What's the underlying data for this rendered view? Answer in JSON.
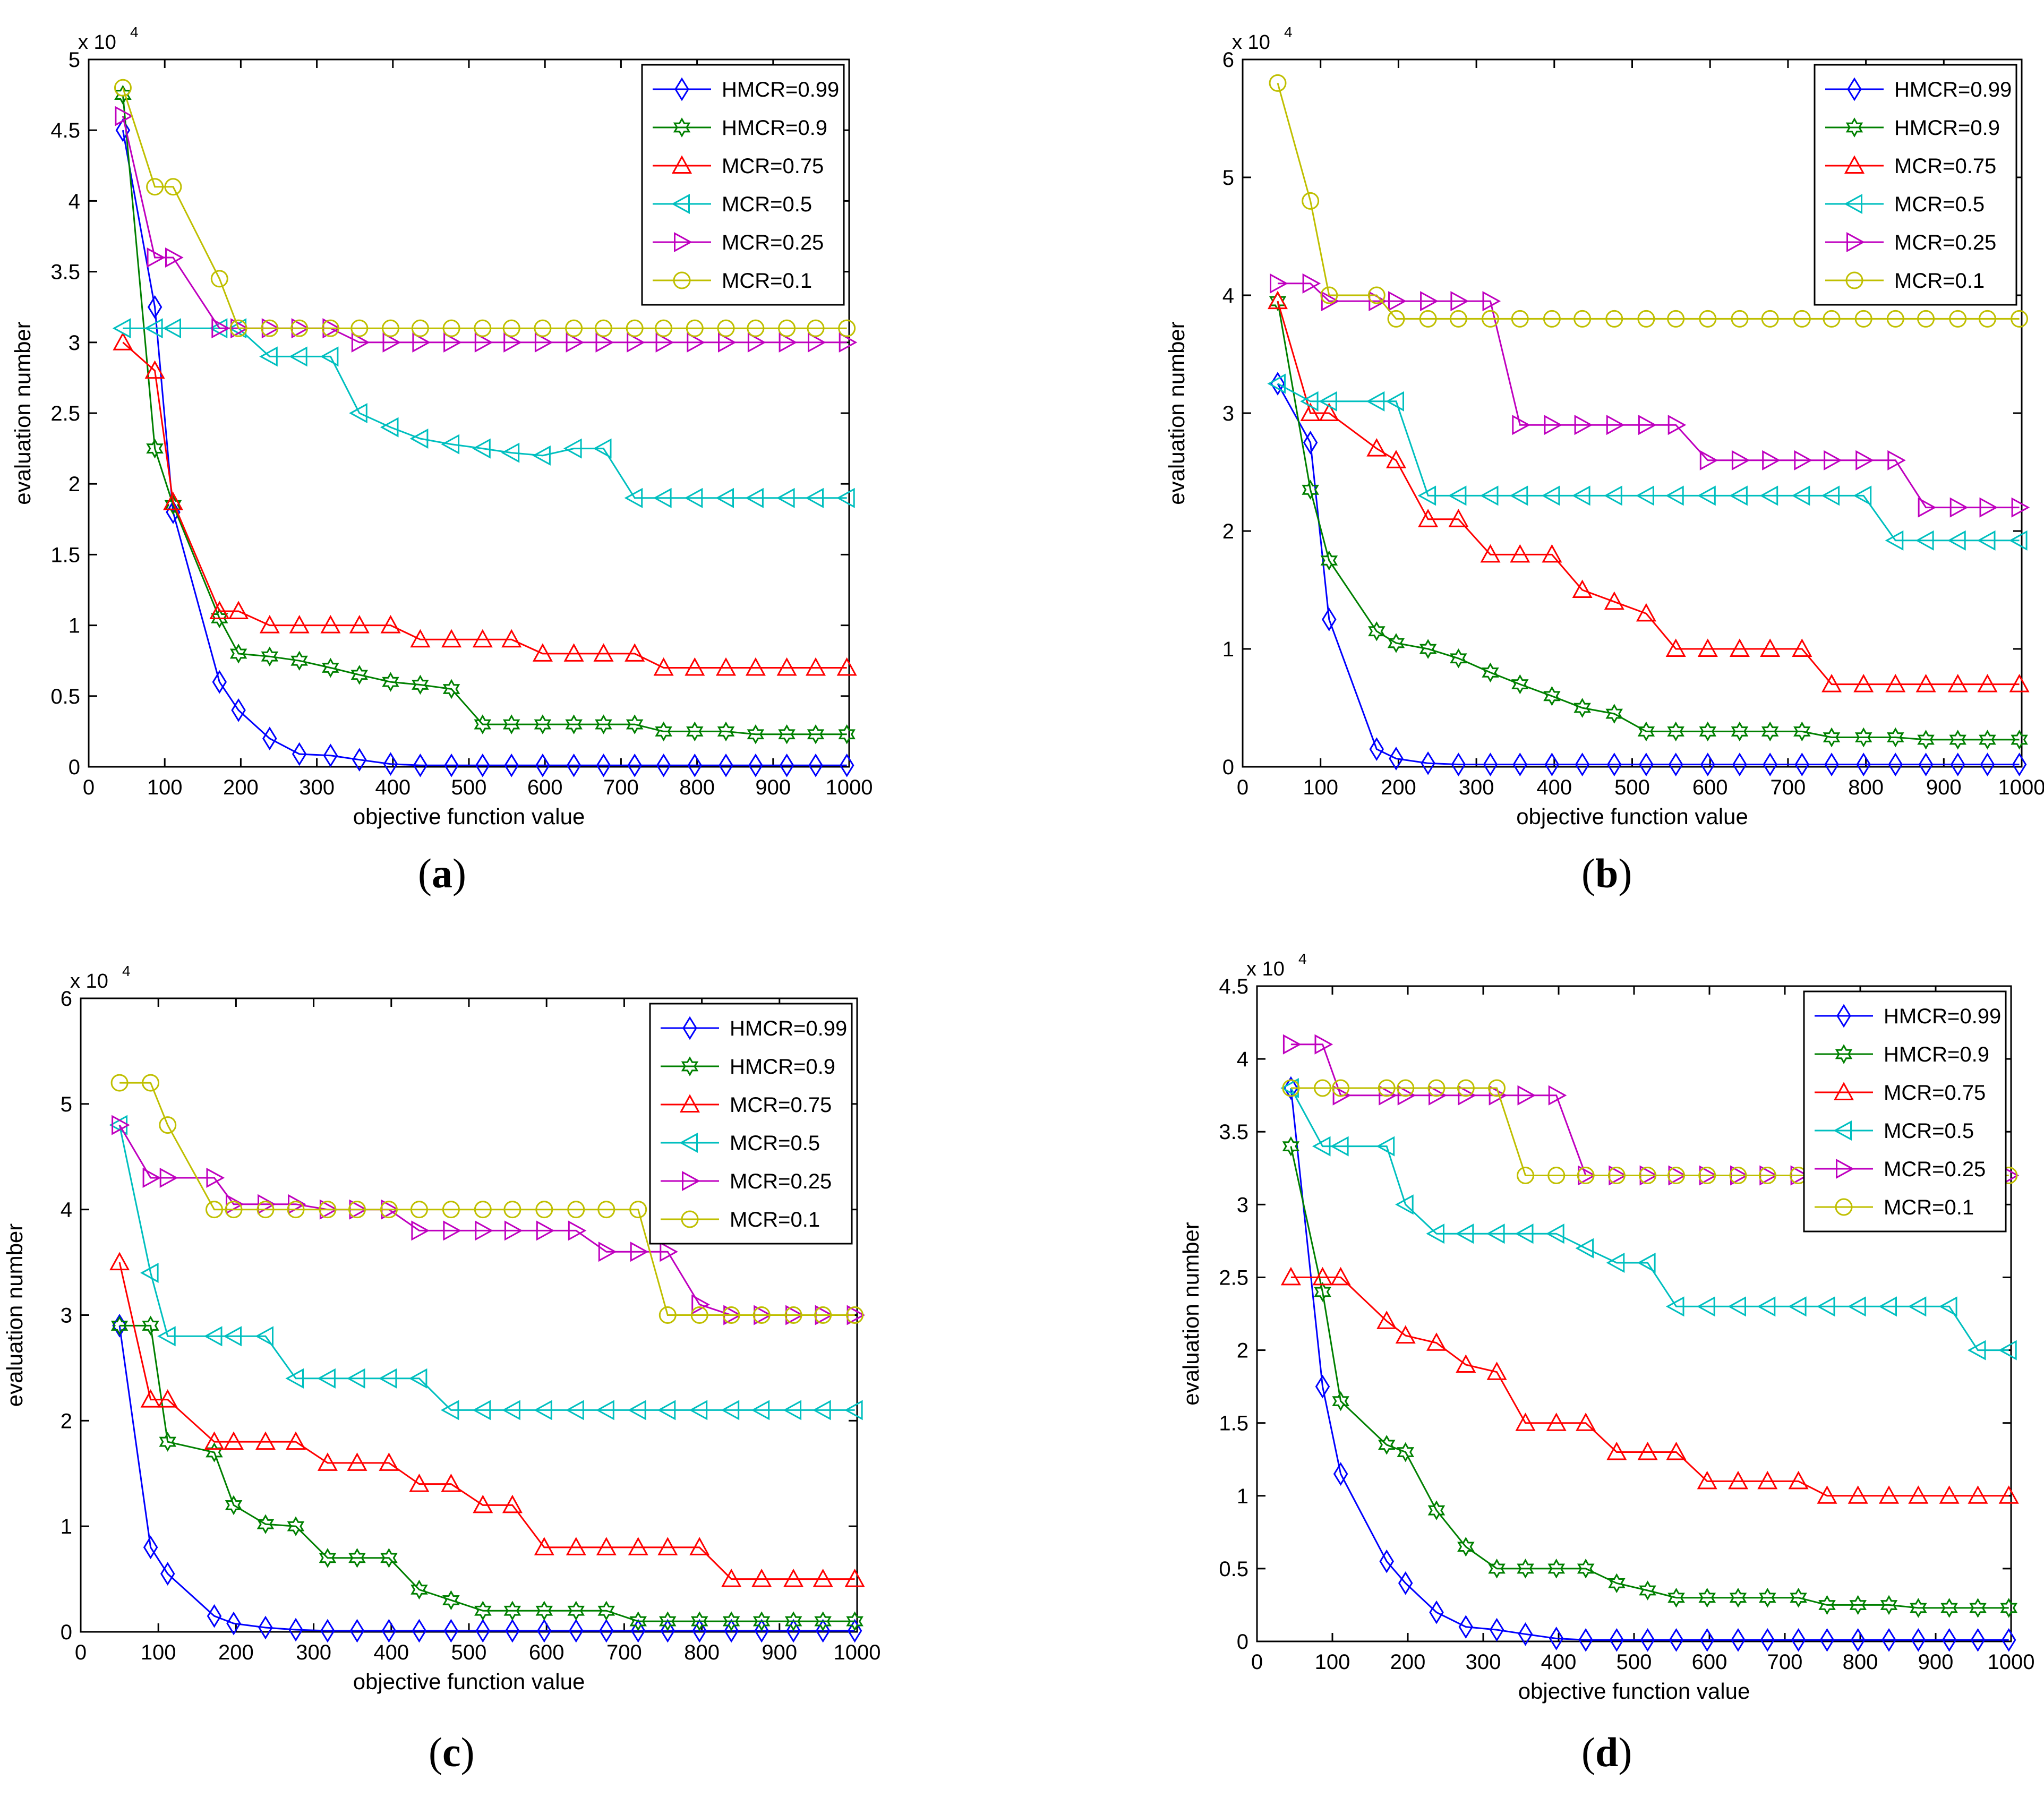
{
  "legend_labels": [
    "HMCR=0.99",
    "HMCR=0.9",
    "MCR=0.75",
    "MCR=0.5",
    "MCR=0.25",
    "MCR=0.1"
  ],
  "series_colors": [
    "#0000ff",
    "#008000",
    "#ff0000",
    "#00bfbf",
    "#bf00bf",
    "#bfbf00"
  ],
  "series_markers": [
    "diamond-marker",
    "hexagram-marker",
    "triangle-up-marker",
    "triangle-left-marker",
    "triangle-right-marker",
    "circle-marker"
  ],
  "panels": [
    {
      "id": "a",
      "caption": "a"
    },
    {
      "id": "b",
      "caption": "b"
    },
    {
      "id": "c",
      "caption": "c"
    },
    {
      "id": "d",
      "caption": "d"
    }
  ],
  "chart_data": [
    {
      "type": "line",
      "panel": "a",
      "title": "",
      "xlabel": "objective function value",
      "ylabel": "evaluation number",
      "exponent_label": "x 10",
      "exponent_power": "4",
      "xlim": [
        0,
        1000
      ],
      "ylim": [
        0,
        5
      ],
      "xticks": [
        0,
        100,
        200,
        300,
        400,
        500,
        600,
        700,
        800,
        900,
        1000
      ],
      "yticks": [
        0,
        0.5,
        1,
        1.5,
        2,
        2.5,
        3,
        3.5,
        4,
        4.5,
        5
      ],
      "legend_position": "top-right",
      "x": [
        45,
        87,
        111,
        172,
        197,
        238,
        277,
        318,
        356,
        397,
        436,
        477,
        518,
        556,
        597,
        638,
        677,
        718,
        756,
        797,
        838,
        877,
        918,
        956,
        997
      ],
      "series": [
        {
          "name": "HMCR=0.99",
          "values": [
            4.5,
            3.25,
            1.8,
            0.6,
            0.4,
            0.2,
            0.09,
            0.08,
            0.05,
            0.02,
            0.01,
            0.01,
            0.01,
            0.01,
            0.01,
            0.01,
            0.01,
            0.01,
            0.01,
            0.01,
            0.01,
            0.01,
            0.01,
            0.01,
            0.01
          ]
        },
        {
          "name": "HMCR=0.9",
          "values": [
            4.75,
            2.25,
            1.85,
            1.05,
            0.8,
            0.78,
            0.75,
            0.7,
            0.65,
            0.6,
            0.58,
            0.55,
            0.3,
            0.3,
            0.3,
            0.3,
            0.3,
            0.3,
            0.25,
            0.25,
            0.25,
            0.23,
            0.23,
            0.23,
            0.23
          ]
        },
        {
          "name": "MCR=0.75",
          "values": [
            3.0,
            2.8,
            1.87,
            1.1,
            1.1,
            1.0,
            1.0,
            1.0,
            1.0,
            1.0,
            0.9,
            0.9,
            0.9,
            0.9,
            0.8,
            0.8,
            0.8,
            0.8,
            0.7,
            0.7,
            0.7,
            0.7,
            0.7,
            0.7,
            0.7
          ]
        },
        {
          "name": "MCR=0.5",
          "values": [
            3.1,
            3.1,
            3.1,
            3.1,
            3.1,
            2.9,
            2.9,
            2.9,
            2.5,
            2.4,
            2.32,
            2.28,
            2.25,
            2.22,
            2.2,
            2.25,
            2.25,
            1.9,
            1.9,
            1.9,
            1.9,
            1.9,
            1.9,
            1.9,
            1.9
          ]
        },
        {
          "name": "MCR=0.25",
          "values": [
            4.6,
            3.6,
            3.6,
            3.1,
            3.1,
            3.1,
            3.1,
            3.1,
            3.0,
            3.0,
            3.0,
            3.0,
            3.0,
            3.0,
            3.0,
            3.0,
            3.0,
            3.0,
            3.0,
            3.0,
            3.0,
            3.0,
            3.0,
            3.0,
            3.0
          ]
        },
        {
          "name": "MCR=0.1",
          "values": [
            4.8,
            4.1,
            4.1,
            3.45,
            3.1,
            3.1,
            3.1,
            3.1,
            3.1,
            3.1,
            3.1,
            3.1,
            3.1,
            3.1,
            3.1,
            3.1,
            3.1,
            3.1,
            3.1,
            3.1,
            3.1,
            3.1,
            3.1,
            3.1,
            3.1
          ]
        }
      ]
    },
    {
      "type": "line",
      "panel": "b",
      "title": "",
      "xlabel": "objective function value",
      "ylabel": "evaluation number",
      "exponent_label": "x 10",
      "exponent_power": "4",
      "xlim": [
        0,
        1000
      ],
      "ylim": [
        0,
        6
      ],
      "xticks": [
        0,
        100,
        200,
        300,
        400,
        500,
        600,
        700,
        800,
        900,
        1000
      ],
      "yticks": [
        0,
        1,
        2,
        3,
        4,
        5,
        6
      ],
      "legend_position": "top-right",
      "x": [
        45,
        87,
        111,
        172,
        197,
        238,
        277,
        318,
        356,
        397,
        436,
        477,
        518,
        556,
        597,
        638,
        677,
        718,
        756,
        797,
        838,
        877,
        918,
        956,
        997
      ],
      "series": [
        {
          "name": "HMCR=0.99",
          "values": [
            3.25,
            2.75,
            1.25,
            0.15,
            0.07,
            0.03,
            0.02,
            0.02,
            0.02,
            0.02,
            0.02,
            0.02,
            0.02,
            0.02,
            0.02,
            0.02,
            0.02,
            0.02,
            0.02,
            0.02,
            0.02,
            0.02,
            0.02,
            0.02,
            0.02
          ]
        },
        {
          "name": "HMCR=0.9",
          "values": [
            3.95,
            2.35,
            1.75,
            1.15,
            1.05,
            1.0,
            0.92,
            0.8,
            0.7,
            0.6,
            0.5,
            0.45,
            0.3,
            0.3,
            0.3,
            0.3,
            0.3,
            0.3,
            0.25,
            0.25,
            0.25,
            0.23,
            0.23,
            0.23,
            0.23
          ]
        },
        {
          "name": "MCR=0.75",
          "values": [
            3.95,
            3.0,
            3.0,
            2.7,
            2.6,
            2.1,
            2.1,
            1.8,
            1.8,
            1.8,
            1.5,
            1.4,
            1.3,
            1.0,
            1.0,
            1.0,
            1.0,
            1.0,
            0.7,
            0.7,
            0.7,
            0.7,
            0.7,
            0.7,
            0.7
          ]
        },
        {
          "name": "MCR=0.5",
          "values": [
            3.25,
            3.1,
            3.1,
            3.1,
            3.1,
            2.3,
            2.3,
            2.3,
            2.3,
            2.3,
            2.3,
            2.3,
            2.3,
            2.3,
            2.3,
            2.3,
            2.3,
            2.3,
            2.3,
            2.3,
            1.92,
            1.92,
            1.92,
            1.92,
            1.92
          ]
        },
        {
          "name": "MCR=0.25",
          "values": [
            4.1,
            4.1,
            3.95,
            3.95,
            3.95,
            3.95,
            3.95,
            3.95,
            2.9,
            2.9,
            2.9,
            2.9,
            2.9,
            2.9,
            2.6,
            2.6,
            2.6,
            2.6,
            2.6,
            2.6,
            2.6,
            2.2,
            2.2,
            2.2,
            2.2
          ]
        },
        {
          "name": "MCR=0.1",
          "values": [
            5.8,
            4.8,
            4.0,
            4.0,
            3.8,
            3.8,
            3.8,
            3.8,
            3.8,
            3.8,
            3.8,
            3.8,
            3.8,
            3.8,
            3.8,
            3.8,
            3.8,
            3.8,
            3.8,
            3.8,
            3.8,
            3.8,
            3.8,
            3.8,
            3.8
          ]
        }
      ]
    },
    {
      "type": "line",
      "panel": "c",
      "title": "",
      "xlabel": "objective function value",
      "ylabel": "evaluation number",
      "exponent_label": "x 10",
      "exponent_power": "4",
      "xlim": [
        0,
        1000
      ],
      "ylim": [
        0,
        6
      ],
      "xticks": [
        0,
        100,
        200,
        300,
        400,
        500,
        600,
        700,
        800,
        900,
        1000
      ],
      "yticks": [
        0,
        1,
        2,
        3,
        4,
        5,
        6
      ],
      "legend_position": "top-right",
      "x": [
        50,
        90,
        112,
        172,
        197,
        238,
        277,
        318,
        356,
        397,
        436,
        477,
        518,
        556,
        597,
        638,
        677,
        718,
        756,
        797,
        838,
        877,
        918,
        956,
        997
      ],
      "series": [
        {
          "name": "HMCR=0.99",
          "values": [
            2.9,
            0.8,
            0.55,
            0.15,
            0.08,
            0.04,
            0.02,
            0.01,
            0.01,
            0.01,
            0.01,
            0.01,
            0.01,
            0.01,
            0.01,
            0.01,
            0.01,
            0.01,
            0.01,
            0.01,
            0.01,
            0.01,
            0.01,
            0.01,
            0.01
          ]
        },
        {
          "name": "HMCR=0.9",
          "values": [
            2.9,
            2.9,
            1.8,
            1.7,
            1.2,
            1.02,
            1.0,
            0.7,
            0.7,
            0.7,
            0.4,
            0.3,
            0.2,
            0.2,
            0.2,
            0.2,
            0.2,
            0.1,
            0.1,
            0.1,
            0.1,
            0.1,
            0.1,
            0.1,
            0.1
          ]
        },
        {
          "name": "MCR=0.75",
          "values": [
            3.5,
            2.2,
            2.2,
            1.8,
            1.8,
            1.8,
            1.8,
            1.6,
            1.6,
            1.6,
            1.4,
            1.4,
            1.2,
            1.2,
            0.8,
            0.8,
            0.8,
            0.8,
            0.8,
            0.8,
            0.5,
            0.5,
            0.5,
            0.5,
            0.5
          ]
        },
        {
          "name": "MCR=0.5",
          "values": [
            4.8,
            3.4,
            2.8,
            2.8,
            2.8,
            2.8,
            2.4,
            2.4,
            2.4,
            2.4,
            2.4,
            2.1,
            2.1,
            2.1,
            2.1,
            2.1,
            2.1,
            2.1,
            2.1,
            2.1,
            2.1,
            2.1,
            2.1,
            2.1,
            2.1
          ]
        },
        {
          "name": "MCR=0.25",
          "values": [
            4.8,
            4.3,
            4.3,
            4.3,
            4.05,
            4.05,
            4.05,
            4.0,
            4.0,
            4.0,
            3.8,
            3.8,
            3.8,
            3.8,
            3.8,
            3.8,
            3.6,
            3.6,
            3.6,
            3.1,
            3.0,
            3.0,
            3.0,
            3.0,
            3.0
          ]
        },
        {
          "name": "MCR=0.1",
          "values": [
            5.2,
            5.2,
            4.8,
            4.0,
            4.0,
            4.0,
            4.0,
            4.0,
            4.0,
            4.0,
            4.0,
            4.0,
            4.0,
            4.0,
            4.0,
            4.0,
            4.0,
            4.0,
            3.0,
            3.0,
            3.0,
            3.0,
            3.0,
            3.0,
            3.0
          ]
        }
      ]
    },
    {
      "type": "line",
      "panel": "d",
      "title": "",
      "xlabel": "objective function value",
      "ylabel": "evaluation number",
      "exponent_label": "x 10",
      "exponent_power": "4",
      "xlim": [
        0,
        1000
      ],
      "ylim": [
        0,
        4.5
      ],
      "xticks": [
        0,
        100,
        200,
        300,
        400,
        500,
        600,
        700,
        800,
        900,
        1000
      ],
      "yticks": [
        0,
        0.5,
        1,
        1.5,
        2,
        2.5,
        3,
        3.5,
        4,
        4.5
      ],
      "legend_position": "top-right",
      "x": [
        45,
        87,
        111,
        172,
        197,
        238,
        277,
        318,
        356,
        397,
        436,
        477,
        518,
        556,
        597,
        638,
        677,
        718,
        756,
        797,
        838,
        877,
        918,
        956,
        997
      ],
      "series": [
        {
          "name": "HMCR=0.99",
          "values": [
            3.8,
            1.75,
            1.15,
            0.55,
            0.4,
            0.2,
            0.1,
            0.08,
            0.05,
            0.02,
            0.01,
            0.01,
            0.01,
            0.01,
            0.01,
            0.01,
            0.01,
            0.01,
            0.01,
            0.01,
            0.01,
            0.01,
            0.01,
            0.01,
            0.01
          ]
        },
        {
          "name": "HMCR=0.9",
          "values": [
            3.4,
            2.4,
            1.65,
            1.35,
            1.3,
            0.9,
            0.65,
            0.5,
            0.5,
            0.5,
            0.5,
            0.4,
            0.35,
            0.3,
            0.3,
            0.3,
            0.3,
            0.3,
            0.25,
            0.25,
            0.25,
            0.23,
            0.23,
            0.23,
            0.23
          ]
        },
        {
          "name": "MCR=0.75",
          "values": [
            2.5,
            2.5,
            2.5,
            2.2,
            2.1,
            2.05,
            1.9,
            1.85,
            1.5,
            1.5,
            1.5,
            1.3,
            1.3,
            1.3,
            1.1,
            1.1,
            1.1,
            1.1,
            1.0,
            1.0,
            1.0,
            1.0,
            1.0,
            1.0,
            1.0
          ]
        },
        {
          "name": "MCR=0.5",
          "values": [
            3.8,
            3.4,
            3.4,
            3.4,
            3.0,
            2.8,
            2.8,
            2.8,
            2.8,
            2.8,
            2.7,
            2.6,
            2.6,
            2.3,
            2.3,
            2.3,
            2.3,
            2.3,
            2.3,
            2.3,
            2.3,
            2.3,
            2.3,
            2.0,
            2.0
          ]
        },
        {
          "name": "MCR=0.25",
          "values": [
            4.1,
            4.1,
            3.75,
            3.75,
            3.75,
            3.75,
            3.75,
            3.75,
            3.75,
            3.75,
            3.2,
            3.2,
            3.2,
            3.2,
            3.2,
            3.2,
            3.2,
            3.2,
            3.2,
            3.2,
            3.2,
            3.2,
            3.2,
            3.2,
            3.2
          ]
        },
        {
          "name": "MCR=0.1",
          "values": [
            3.8,
            3.8,
            3.8,
            3.8,
            3.8,
            3.8,
            3.8,
            3.8,
            3.2,
            3.2,
            3.2,
            3.2,
            3.2,
            3.2,
            3.2,
            3.2,
            3.2,
            3.2,
            3.2,
            3.2,
            3.2,
            3.2,
            3.2,
            3.2,
            3.2
          ]
        }
      ]
    }
  ]
}
